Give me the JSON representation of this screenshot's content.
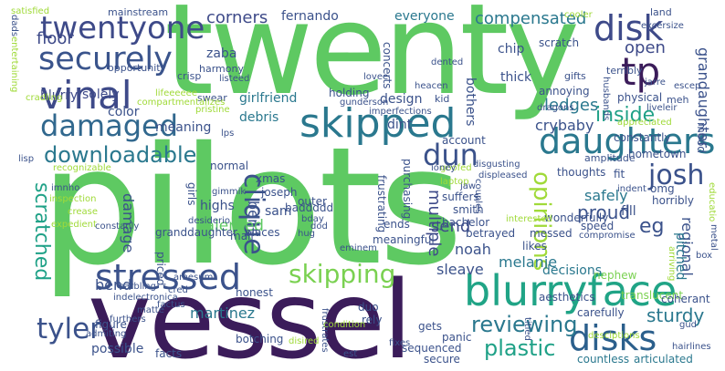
{
  "words": [
    {
      "text": "pilots",
      "color": "#5ec962",
      "orient": "h"
    },
    {
      "text": "twenty",
      "color": "#5ec962",
      "orient": "h"
    },
    {
      "text": "vessel",
      "color": "#3b1c5a",
      "orient": "h"
    },
    {
      "text": "blurryface",
      "color": "#20a486",
      "orient": "h"
    },
    {
      "text": "twentyone",
      "color": "#3e4a89",
      "orient": "h"
    },
    {
      "text": "securely",
      "color": "#3a548c",
      "orient": "h"
    },
    {
      "text": "vinal",
      "color": "#3e4a89",
      "orient": "h"
    },
    {
      "text": "damaged",
      "color": "#31688e",
      "orient": "h"
    },
    {
      "text": "skipped",
      "color": "#2a788e",
      "orient": "h"
    },
    {
      "text": "stressed",
      "color": "#3b528b",
      "orient": "h"
    },
    {
      "text": "daughters",
      "color": "#2a788e",
      "orient": "h"
    },
    {
      "text": "disks",
      "color": "#2b5f8c",
      "orient": "h"
    },
    {
      "text": "disk",
      "color": "#3e4a89",
      "orient": "h"
    },
    {
      "text": "tp",
      "color": "#3b1c5a",
      "orient": "h"
    },
    {
      "text": "skipping",
      "color": "#7ad151",
      "orient": "h"
    },
    {
      "text": "downloadable",
      "color": "#2a788e",
      "orient": "h"
    },
    {
      "text": "josh",
      "color": "#3b528b",
      "orient": "h"
    },
    {
      "text": "dun",
      "color": "#3b528b",
      "orient": "h"
    },
    {
      "text": "tyler",
      "color": "#3b528b",
      "orient": "h"
    },
    {
      "text": "clique",
      "color": "#3b528b",
      "orient": "v"
    },
    {
      "text": "scratched",
      "color": "#1fa187",
      "orient": "v"
    },
    {
      "text": "opinions",
      "color": "#a0da39",
      "orient": "v"
    },
    {
      "text": "corners",
      "color": "#3e4a89",
      "orient": "h"
    },
    {
      "text": "compensated",
      "color": "#2a788e",
      "orient": "h"
    },
    {
      "text": "floor",
      "color": "#3e4a89",
      "orient": "h"
    },
    {
      "text": "open",
      "color": "#3e4a89",
      "orient": "h"
    },
    {
      "text": "inside",
      "color": "#1fa187",
      "orient": "h"
    },
    {
      "text": "reviewing",
      "color": "#2a788e",
      "orient": "h"
    },
    {
      "text": "plastic",
      "color": "#1fa187",
      "orient": "h"
    },
    {
      "text": "sturdy",
      "color": "#2a788e",
      "orient": "h"
    },
    {
      "text": "multiple",
      "color": "#3e4a89",
      "orient": "v"
    },
    {
      "text": "ledges",
      "color": "#2a788e",
      "orient": "h"
    },
    {
      "text": "crybaby",
      "color": "#3b528b",
      "orient": "h"
    },
    {
      "text": "meaning",
      "color": "#3b528b",
      "orient": "h"
    },
    {
      "text": "highs",
      "color": "#3b528b",
      "orient": "h"
    },
    {
      "text": "bent",
      "color": "#3b528b",
      "orient": "v"
    },
    {
      "text": "talented",
      "color": "#5ec962",
      "orient": "h"
    },
    {
      "text": "send",
      "color": "#3e4a89",
      "orient": "h"
    },
    {
      "text": "sleave",
      "color": "#3b528b",
      "orient": "h"
    },
    {
      "text": "noah",
      "color": "#3b528b",
      "orient": "h"
    },
    {
      "text": "melanie",
      "color": "#2a788e",
      "orient": "h"
    },
    {
      "text": "decisions",
      "color": "#2a788e",
      "orient": "h"
    },
    {
      "text": "eg",
      "color": "#3b528b",
      "orient": "h"
    },
    {
      "text": "regional",
      "color": "#3b528b",
      "orient": "v"
    },
    {
      "text": "proud",
      "color": "#3b528b",
      "orient": "h"
    },
    {
      "text": "safely",
      "color": "#2a788e",
      "orient": "h"
    },
    {
      "text": "martinez",
      "color": "#2a788e",
      "orient": "h"
    },
    {
      "text": "possible",
      "color": "#3b528b",
      "orient": "h"
    },
    {
      "text": "bend",
      "color": "#3b528b",
      "orient": "h"
    },
    {
      "text": "damage",
      "color": "#3b528b",
      "orient": "v"
    },
    {
      "text": "blurry",
      "color": "#3e4a89",
      "orient": "h"
    },
    {
      "text": "solely",
      "color": "#3e4a89",
      "orient": "h"
    },
    {
      "text": "zaba",
      "color": "#3b528b",
      "orient": "h"
    },
    {
      "text": "fernando",
      "color": "#3b528b",
      "orient": "h"
    },
    {
      "text": "everyone",
      "color": "#2a788e",
      "orient": "h"
    },
    {
      "text": "thick",
      "color": "#3b528b",
      "orient": "h"
    },
    {
      "text": "chip",
      "color": "#3b528b",
      "orient": "h"
    },
    {
      "text": "girlfriend",
      "color": "#2a788e",
      "orient": "h"
    },
    {
      "text": "debris",
      "color": "#2a788e",
      "orient": "h"
    },
    {
      "text": "dint",
      "color": "#3b528b",
      "orient": "h"
    },
    {
      "text": "sam",
      "color": "#3b528b",
      "orient": "h"
    },
    {
      "text": "granddaughter",
      "color": "#3b528b",
      "orient": "h"
    },
    {
      "text": "grandaughter",
      "color": "#3b528b",
      "orient": "v"
    },
    {
      "text": "mood",
      "color": "#3b528b",
      "orient": "v"
    },
    {
      "text": "design",
      "color": "#3b528b",
      "orient": "h"
    },
    {
      "text": "color",
      "color": "#3b528b",
      "orient": "h"
    },
    {
      "text": "fill",
      "color": "#3b528b",
      "orient": "h"
    },
    {
      "text": "pitched",
      "color": "#2a788e",
      "orient": "v"
    },
    {
      "text": "bothers",
      "color": "#3b528b",
      "orient": "v"
    },
    {
      "text": "holding",
      "color": "#3b528b",
      "orient": "h"
    },
    {
      "text": "annoying",
      "color": "#3b528b",
      "orient": "h"
    },
    {
      "text": "scratch",
      "color": "#3b528b",
      "orient": "h"
    },
    {
      "text": "physical",
      "color": "#3b528b",
      "orient": "h"
    },
    {
      "text": "hometown",
      "color": "#3b528b",
      "orient": "h"
    },
    {
      "text": "constantly",
      "color": "#3b528b",
      "orient": "h"
    },
    {
      "text": "account",
      "color": "#3b528b",
      "orient": "h"
    },
    {
      "text": "smith",
      "color": "#3b528b",
      "orient": "h"
    },
    {
      "text": "bachelor",
      "color": "#3b528b",
      "orient": "h"
    },
    {
      "text": "suffers",
      "color": "#3b528b",
      "orient": "h"
    },
    {
      "text": "betrayed",
      "color": "#3b528b",
      "orient": "h"
    },
    {
      "text": "messed",
      "color": "#3b528b",
      "orient": "h"
    },
    {
      "text": "likes",
      "color": "#3b528b",
      "orient": "h"
    },
    {
      "text": "aesthetics",
      "color": "#3b528b",
      "orient": "h"
    },
    {
      "text": "nephew",
      "color": "#7ad151",
      "orient": "h"
    },
    {
      "text": "translucent",
      "color": "#7ad151",
      "orient": "h"
    },
    {
      "text": "honest",
      "color": "#3b528b",
      "orient": "h"
    },
    {
      "text": "duo",
      "color": "#3b528b",
      "orient": "h"
    },
    {
      "text": "rely",
      "color": "#3b528b",
      "orient": "h"
    },
    {
      "text": "sequenced",
      "color": "#3b528b",
      "orient": "h"
    },
    {
      "text": "panic",
      "color": "#3b528b",
      "orient": "h"
    },
    {
      "text": "carefully",
      "color": "#3b528b",
      "orient": "h"
    },
    {
      "text": "coherant",
      "color": "#3b528b",
      "orient": "h"
    },
    {
      "text": "countless",
      "color": "#2a788e",
      "orient": "h"
    },
    {
      "text": "articulated",
      "color": "#2a788e",
      "orient": "h"
    },
    {
      "text": "figure",
      "color": "#3b528b",
      "orient": "h"
    },
    {
      "text": "facts",
      "color": "#3b528b",
      "orient": "h"
    },
    {
      "text": "secure",
      "color": "#3b528b",
      "orient": "h"
    },
    {
      "text": "botching",
      "color": "#3b528b",
      "orient": "h"
    },
    {
      "text": "gets",
      "color": "#3b528b",
      "orient": "h"
    },
    {
      "text": "mail",
      "color": "#3b528b",
      "orient": "h"
    },
    {
      "text": "ends",
      "color": "#3b528b",
      "orient": "h"
    },
    {
      "text": "places",
      "color": "#3b528b",
      "orient": "h"
    },
    {
      "text": "speed",
      "color": "#3b528b",
      "orient": "h"
    },
    {
      "text": "meaningful",
      "color": "#3b528b",
      "orient": "h"
    },
    {
      "text": "thoughts",
      "color": "#3b528b",
      "orient": "h"
    },
    {
      "text": "joseph",
      "color": "#3b528b",
      "orient": "h"
    },
    {
      "text": "xmas",
      "color": "#3b528b",
      "orient": "h"
    },
    {
      "text": "girls",
      "color": "#3b528b",
      "orient": "v"
    },
    {
      "text": "baddddd",
      "color": "#3b528b",
      "orient": "h"
    },
    {
      "text": "normal",
      "color": "#3b528b",
      "orient": "h"
    },
    {
      "text": "horribly",
      "color": "#3b528b",
      "orient": "h"
    },
    {
      "text": "priced",
      "color": "#3b528b",
      "orient": "v"
    },
    {
      "text": "outer",
      "color": "#3b528b",
      "orient": "h"
    },
    {
      "text": "purchasing",
      "color": "#3b528b",
      "orient": "v"
    },
    {
      "text": "frustrating",
      "color": "#3b528b",
      "orient": "v"
    },
    {
      "text": "wonderfully",
      "color": "#3b528b",
      "orient": "h"
    },
    {
      "text": "omg",
      "color": "#3b528b",
      "orient": "h"
    },
    {
      "text": "fit",
      "color": "#3b528b",
      "orient": "h"
    },
    {
      "text": "concerts",
      "color": "#3b528b",
      "orient": "v"
    },
    {
      "text": "mainstream",
      "color": "#3b528b",
      "orient": "h"
    },
    {
      "text": "opportunity",
      "color": "#3b528b",
      "orient": "h"
    },
    {
      "text": "crisp",
      "color": "#3b528b",
      "orient": "h"
    },
    {
      "text": "harmony",
      "color": "#3b528b",
      "orient": "h"
    },
    {
      "text": "swear",
      "color": "#3b528b",
      "orient": "h"
    },
    {
      "text": "gifts",
      "color": "#3b528b",
      "orient": "h"
    },
    {
      "text": "terribly",
      "color": "#3b528b",
      "orient": "h"
    },
    {
      "text": "land",
      "color": "#3b528b",
      "orient": "h"
    },
    {
      "text": "meh",
      "color": "#3b528b",
      "orient": "h"
    },
    {
      "text": "amplitude",
      "color": "#3b528b",
      "orient": "h"
    },
    {
      "text": "kid",
      "color": "#3b528b",
      "orient": "h"
    },
    {
      "text": "satisfied",
      "color": "#a0da39",
      "orient": "h"
    },
    {
      "text": "entertaining",
      "color": "#a0da39",
      "orient": "v"
    },
    {
      "text": "cradling",
      "color": "#a0da39",
      "orient": "h"
    },
    {
      "text": "recognizable",
      "color": "#a0da39",
      "orient": "h"
    },
    {
      "text": "pristine",
      "color": "#a0da39",
      "orient": "h"
    },
    {
      "text": "lifeeeeee",
      "color": "#a0da39",
      "orient": "h"
    },
    {
      "text": "compartmentalizes",
      "color": "#a0da39",
      "orient": "h"
    },
    {
      "text": "lps",
      "color": "#3b528b",
      "orient": "h"
    },
    {
      "text": "liveleir",
      "color": "#3b528b",
      "orient": "h"
    },
    {
      "text": "appreciated",
      "color": "#a0da39",
      "orient": "h"
    },
    {
      "text": "titled",
      "color": "#3b528b",
      "orient": "v"
    },
    {
      "text": "hairlines",
      "color": "#3b528b",
      "orient": "h"
    },
    {
      "text": "gud",
      "color": "#3b528b",
      "orient": "h"
    },
    {
      "text": "eminem",
      "color": "#3b528b",
      "orient": "h"
    },
    {
      "text": "frustrates",
      "color": "#3b528b",
      "orient": "v"
    },
    {
      "text": "est",
      "color": "#3b528b",
      "orient": "h"
    },
    {
      "text": "excersize",
      "color": "#3b528b",
      "orient": "h"
    },
    {
      "text": "cooler",
      "color": "#a0da39",
      "orient": "h"
    },
    {
      "text": "desciptions",
      "color": "#a0da39",
      "orient": "h"
    },
    {
      "text": "compromise",
      "color": "#3b528b",
      "orient": "h"
    },
    {
      "text": "fixes",
      "color": "#3b528b",
      "orient": "h"
    },
    {
      "text": "amesum",
      "color": "#3b528b",
      "orient": "h"
    },
    {
      "text": "hug",
      "color": "#3b528b",
      "orient": "h"
    },
    {
      "text": "dod",
      "color": "#3b528b",
      "orient": "h"
    },
    {
      "text": "desiderio",
      "color": "#3b528b",
      "orient": "h"
    },
    {
      "text": "inspection",
      "color": "#a0da39",
      "orient": "h"
    },
    {
      "text": "crease",
      "color": "#a0da39",
      "orient": "h"
    },
    {
      "text": "expedient",
      "color": "#a0da39",
      "orient": "h"
    },
    {
      "text": "imnho",
      "color": "#3b528b",
      "orient": "h"
    },
    {
      "text": "constanly",
      "color": "#3b528b",
      "orient": "h"
    },
    {
      "text": "lisp",
      "color": "#3b528b",
      "orient": "h"
    },
    {
      "text": "indelectronica",
      "color": "#3b528b",
      "orient": "h"
    },
    {
      "text": "matte",
      "color": "#3b528b",
      "orient": "h"
    },
    {
      "text": "factus",
      "color": "#3b528b",
      "orient": "h"
    },
    {
      "text": "cred",
      "color": "#3b528b",
      "orient": "h"
    },
    {
      "text": "condition",
      "color": "#a0da39",
      "orient": "h"
    },
    {
      "text": "disired",
      "color": "#a0da39",
      "orient": "h"
    },
    {
      "text": "admiting",
      "color": "#3b528b",
      "orient": "h"
    },
    {
      "text": "furthers",
      "color": "#3b528b",
      "orient": "h"
    },
    {
      "text": "earbling",
      "color": "#3b528b",
      "orient": "h"
    },
    {
      "text": "disgusting",
      "color": "#3b528b",
      "orient": "h"
    },
    {
      "text": "displeased",
      "color": "#3b528b",
      "orient": "h"
    },
    {
      "text": "gimmik",
      "color": "#3b528b",
      "orient": "h"
    },
    {
      "text": "bday",
      "color": "#3b528b",
      "orient": "h"
    },
    {
      "text": "listeed",
      "color": "#3b528b",
      "orient": "h"
    },
    {
      "text": "heacen",
      "color": "#3b528b",
      "orient": "h"
    },
    {
      "text": "lovee",
      "color": "#3b528b",
      "orient": "h"
    },
    {
      "text": "gunderson",
      "color": "#3b528b",
      "orient": "h"
    },
    {
      "text": "imperfections",
      "color": "#3b528b",
      "orient": "h"
    },
    {
      "text": "dented",
      "color": "#3b528b",
      "orient": "h"
    },
    {
      "text": "husbands",
      "color": "#3b528b",
      "orient": "v"
    },
    {
      "text": "dragons",
      "color": "#3b528b",
      "orient": "h"
    },
    {
      "text": "jarre",
      "color": "#3b528b",
      "orient": "h"
    },
    {
      "text": "escep",
      "color": "#3b528b",
      "orient": "h"
    },
    {
      "text": "dads",
      "color": "#3b528b",
      "orient": "v"
    },
    {
      "text": "laptop",
      "color": "#a0da39",
      "orient": "h"
    },
    {
      "text": "goofed",
      "color": "#a0da39",
      "orient": "h"
    },
    {
      "text": "couples",
      "color": "#3b528b",
      "orient": "v"
    },
    {
      "text": "jaw",
      "color": "#3b528b",
      "orient": "h"
    },
    {
      "text": "ioney",
      "color": "#3b528b",
      "orient": "h"
    },
    {
      "text": "indent",
      "color": "#3b528b",
      "orient": "h"
    },
    {
      "text": "educatio",
      "color": "#a0da39",
      "orient": "v"
    },
    {
      "text": "metal",
      "color": "#3b528b",
      "orient": "v"
    },
    {
      "text": "box",
      "color": "#3b528b",
      "orient": "h"
    },
    {
      "text": "arriving",
      "color": "#a0da39",
      "orient": "v"
    },
    {
      "text": "interested",
      "color": "#a0da39",
      "orient": "h"
    }
  ]
}
